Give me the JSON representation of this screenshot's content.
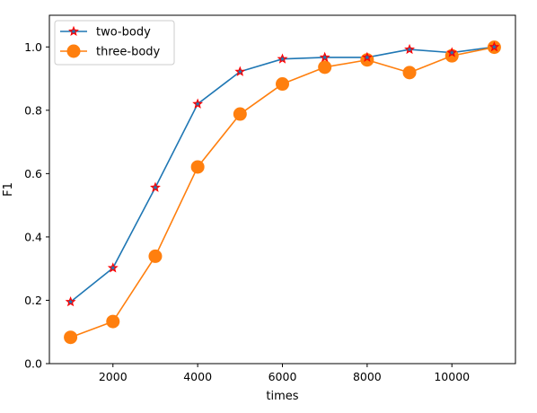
{
  "chart_data": {
    "type": "line",
    "title": "",
    "xlabel": "times",
    "ylabel": "F1",
    "xlim": [
      500,
      11500
    ],
    "ylim": [
      0.0,
      1.1
    ],
    "xticks": [
      2000,
      4000,
      6000,
      8000,
      10000
    ],
    "xtick_labels": [
      "2000",
      "4000",
      "6000",
      "8000",
      "10000"
    ],
    "yticks": [
      0.0,
      0.2,
      0.4,
      0.6,
      0.8,
      1.0
    ],
    "ytick_labels": [
      "0.0",
      "0.2",
      "0.4",
      "0.6",
      "0.8",
      "1.0"
    ],
    "grid": false,
    "legend_position": "top-left",
    "x": [
      1000,
      2000,
      3000,
      4000,
      5000,
      6000,
      7000,
      8000,
      9000,
      10000,
      11000
    ],
    "series": [
      {
        "name": "two-body",
        "color": "#1f77b4",
        "marker": "star",
        "marker_edge_color": "#ff0000",
        "values": [
          0.195,
          0.302,
          0.556,
          0.82,
          0.922,
          0.962,
          0.967,
          0.967,
          0.992,
          0.982,
          1.0
        ]
      },
      {
        "name": "three-body",
        "color": "#ff7f0e",
        "marker": "circle",
        "values": [
          0.083,
          0.133,
          0.339,
          0.621,
          0.788,
          0.883,
          0.936,
          0.959,
          0.919,
          0.972,
          0.999
        ]
      }
    ]
  }
}
